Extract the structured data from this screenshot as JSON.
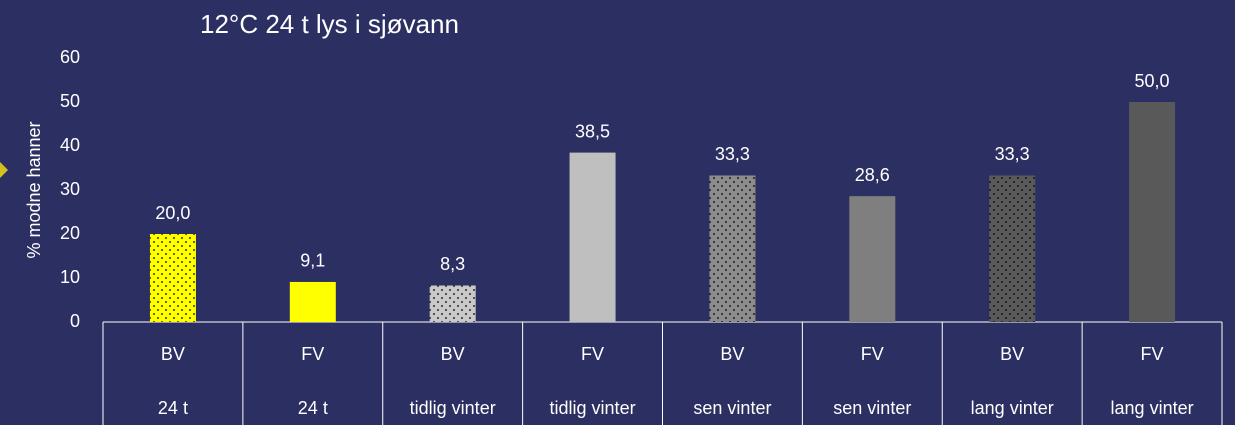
{
  "chart_data": {
    "type": "bar",
    "title": "12°C 24 t lys i sjøvann",
    "y_label": "% modne hanner",
    "categories": [
      "BV",
      "FV",
      "BV",
      "FV",
      "BV",
      "FV",
      "BV",
      "FV"
    ],
    "category_groups": [
      "24 t",
      "24 t",
      "tidlig vinter",
      "tidlig vinter",
      "sen vinter",
      "sen vinter",
      "lang vinter",
      "lang vinter"
    ],
    "values": [
      20.0,
      9.1,
      8.3,
      38.5,
      33.3,
      28.6,
      33.3,
      50.0
    ],
    "value_labels": [
      "20,0",
      "9,1",
      "8,3",
      "38,5",
      "33,3",
      "28,6",
      "33,3",
      "50,0"
    ],
    "colors": [
      "#ffff00",
      "#ffff00",
      "#c9c9c9",
      "#bfbfbf",
      "#8c8c8c",
      "#7f7f7f",
      "#5a5a5a",
      "#595959"
    ],
    "patterns": [
      "dotted",
      "solid",
      "dotted",
      "solid",
      "dotted",
      "solid",
      "dotted",
      "solid"
    ],
    "ylim": [
      0,
      60
    ],
    "yticks": [
      0,
      10,
      20,
      30,
      40,
      50,
      60
    ]
  }
}
